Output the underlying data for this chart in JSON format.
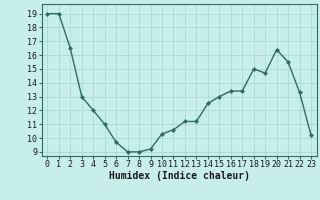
{
  "x": [
    0,
    1,
    2,
    3,
    4,
    5,
    6,
    7,
    8,
    9,
    10,
    11,
    12,
    13,
    14,
    15,
    16,
    17,
    18,
    19,
    20,
    21,
    22,
    23
  ],
  "y": [
    19,
    19,
    16.5,
    13,
    12,
    11,
    9.7,
    9,
    9,
    9.2,
    10.3,
    10.6,
    11.2,
    11.2,
    12.5,
    13.0,
    13.4,
    13.4,
    15.0,
    14.7,
    16.4,
    15.5,
    13.3,
    10.2
  ],
  "line_color": "#2d6e5e",
  "marker": "D",
  "marker_size": 2.0,
  "bg_color": "#c8eeea",
  "grid_color": "#a8d4cc",
  "xlabel": "Humidex (Indice chaleur)",
  "ylabel_ticks": [
    9,
    10,
    11,
    12,
    13,
    14,
    15,
    16,
    17,
    18,
    19
  ],
  "xlim": [
    -0.5,
    23.5
  ],
  "ylim": [
    8.7,
    19.7
  ],
  "xlabel_fontsize": 7,
  "tick_fontsize": 6,
  "linewidth": 1.0
}
